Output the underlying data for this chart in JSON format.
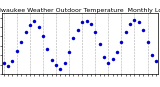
{
  "title": "Milwaukee Weather Outdoor Temperature  Monthly Low",
  "x_values": [
    0,
    1,
    2,
    3,
    4,
    5,
    6,
    7,
    8,
    9,
    10,
    11,
    12,
    13,
    14,
    15,
    16,
    17,
    18,
    19,
    20,
    21,
    22,
    23,
    24,
    25,
    26,
    27,
    28,
    29,
    30,
    31,
    32,
    33,
    34,
    35
  ],
  "y_values": [
    22,
    18,
    24,
    35,
    44,
    55,
    62,
    66,
    60,
    50,
    37,
    25,
    20,
    15,
    22,
    33,
    48,
    57,
    65,
    67,
    63,
    55,
    42,
    28,
    22,
    26,
    33,
    44,
    55,
    63,
    68,
    65,
    57,
    44,
    30,
    24
  ],
  "dot_color": "#0000cc",
  "bg_color": "#ffffff",
  "grid_color": "#999999",
  "ylim": [
    10,
    75
  ],
  "xlim": [
    -0.5,
    35.5
  ],
  "dot_size": 2.5,
  "title_fontsize": 4.5,
  "tick_fontsize": 3.5,
  "grid_every": 3
}
